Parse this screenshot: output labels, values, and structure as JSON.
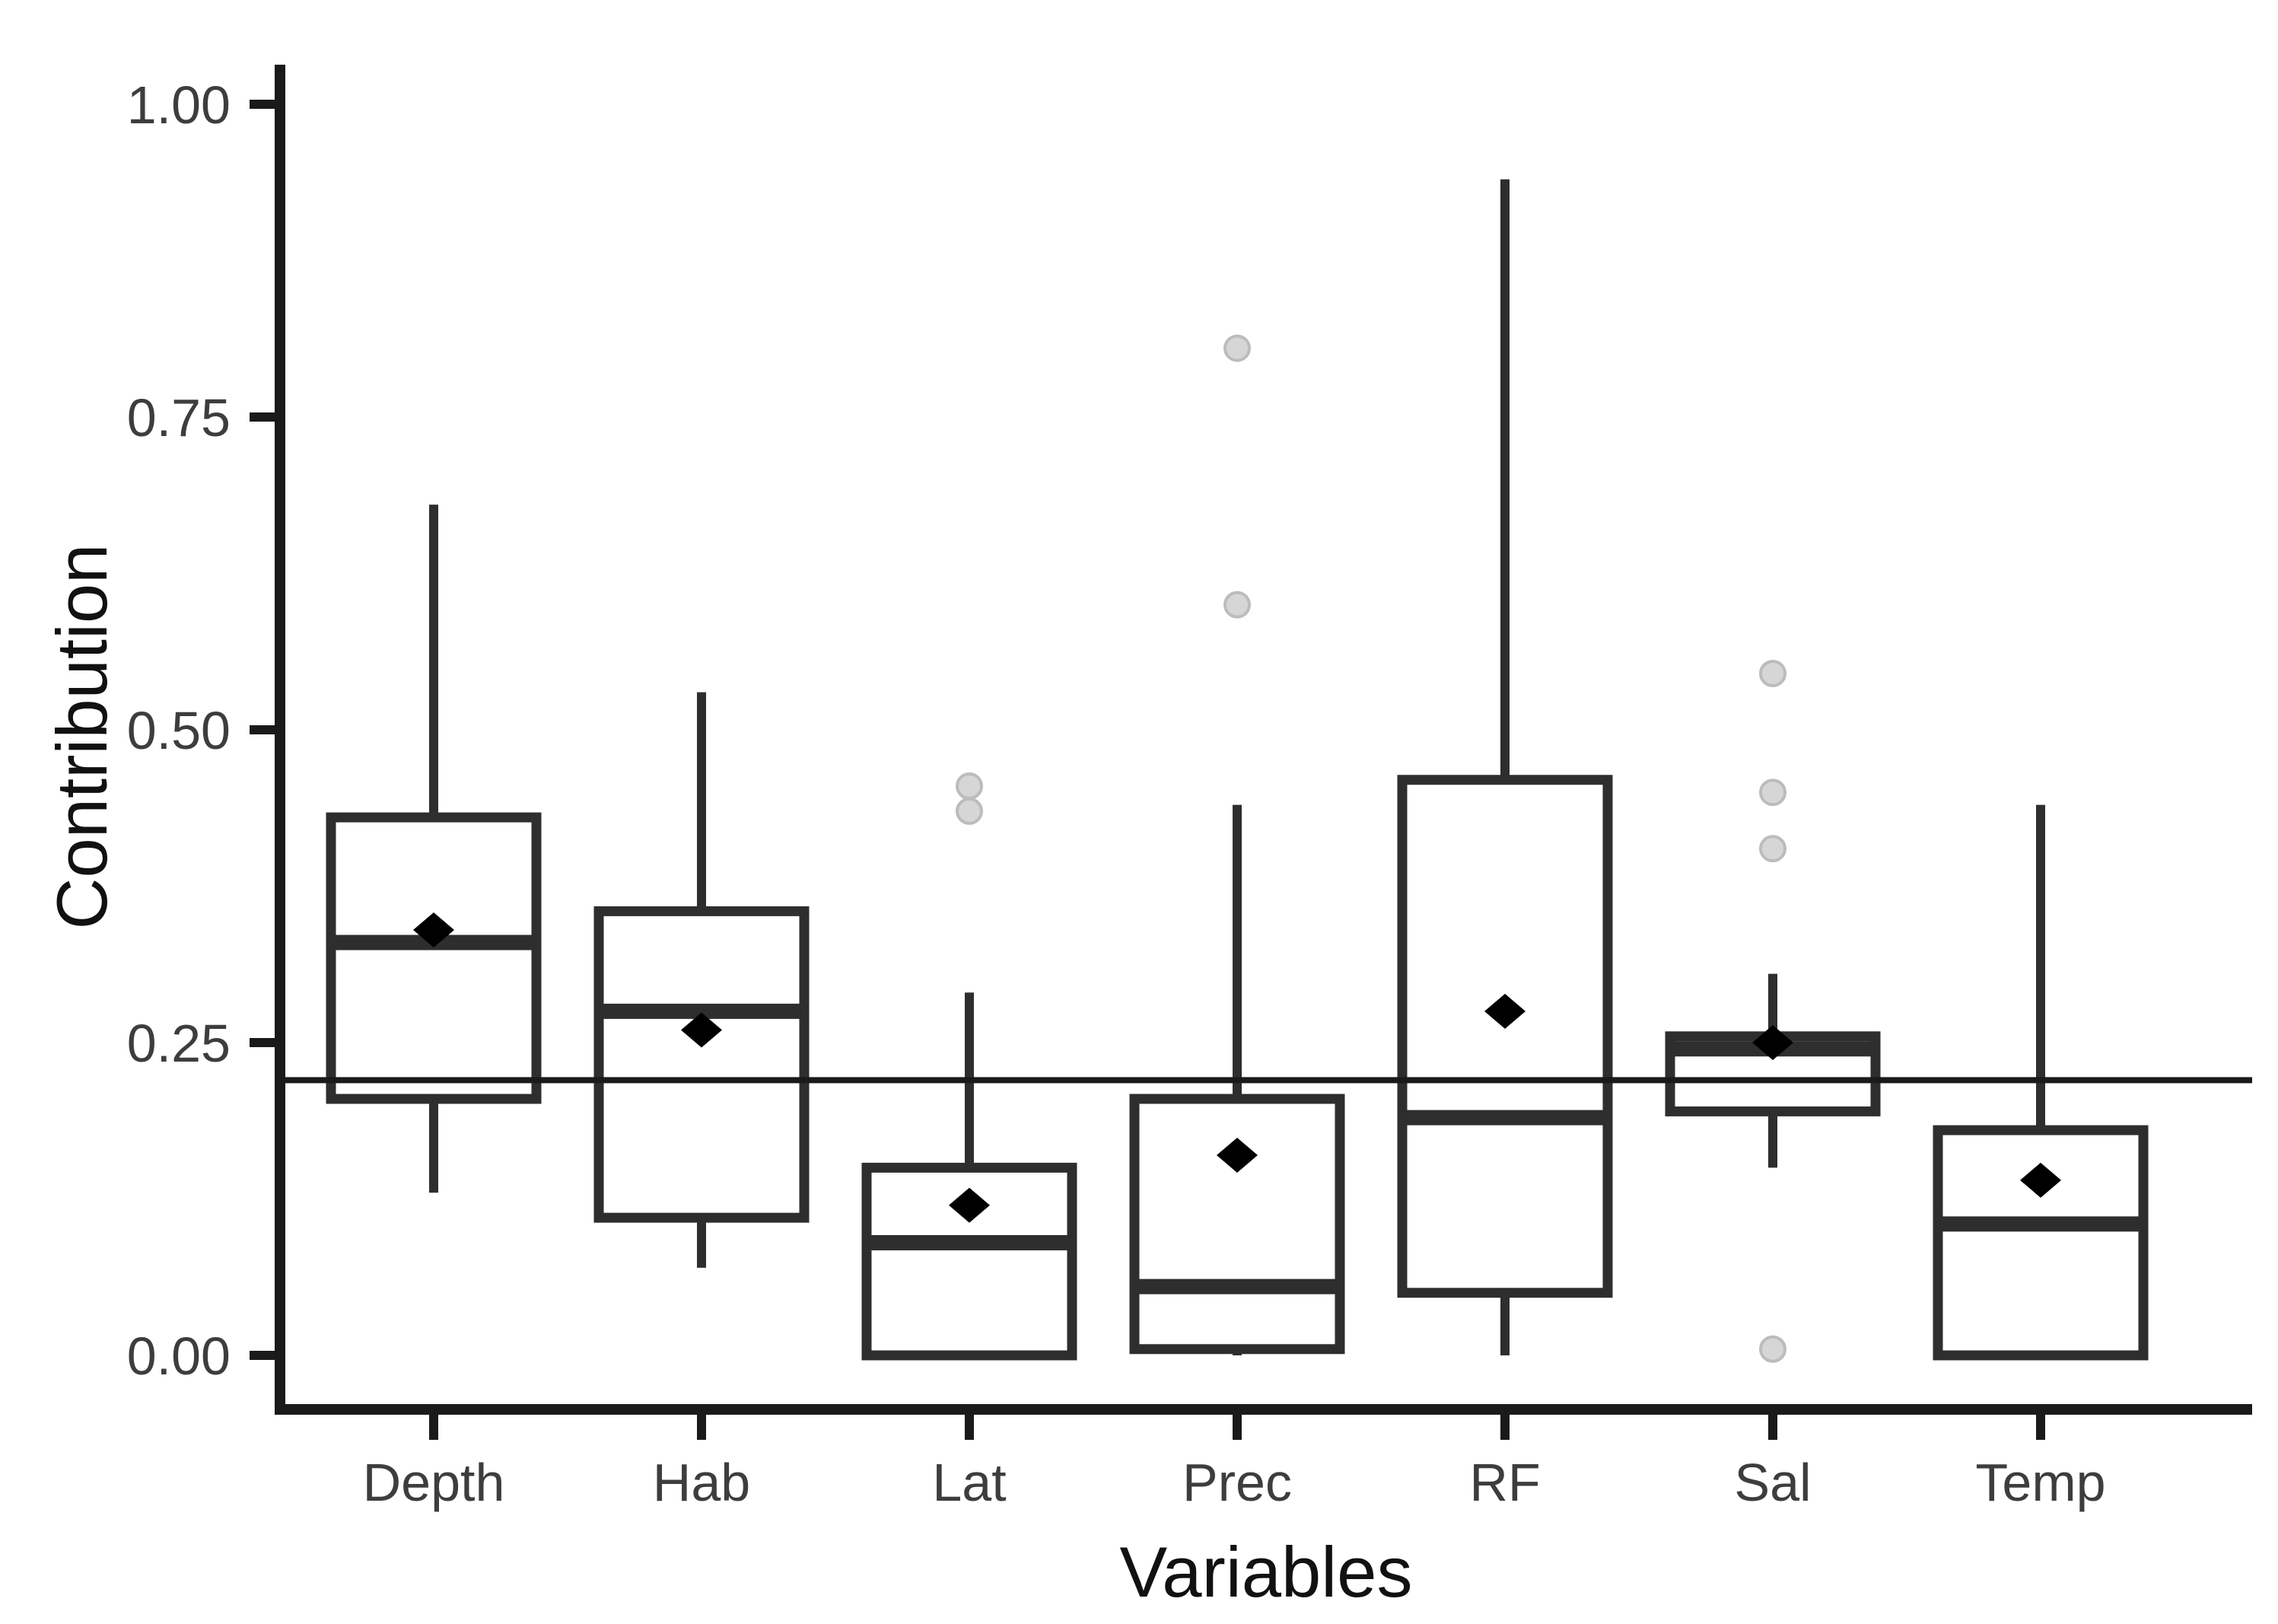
{
  "figure": {
    "kind": "boxplot-figure",
    "background": "#ffffff"
  },
  "chart_data": {
    "type": "boxplot",
    "title": "",
    "xlabel": "Variables",
    "ylabel": "Contribution",
    "categories": [
      "Depth",
      "Hab",
      "Lat",
      "Prec",
      "RF",
      "Sal",
      "Temp"
    ],
    "y_ticks": [
      {
        "value": 0.0,
        "label": "0.00"
      },
      {
        "value": 0.25,
        "label": "0.25"
      },
      {
        "value": 0.5,
        "label": "0.50"
      },
      {
        "value": 0.75,
        "label": "0.75"
      },
      {
        "value": 1.0,
        "label": "1.00"
      }
    ],
    "ylim": [
      -0.045,
      1.035
    ],
    "grid": false,
    "legend": "none",
    "reference_line": {
      "value": 0.22,
      "orientation": "horizontal"
    },
    "series": [
      {
        "name": "Depth",
        "whisker_low": 0.13,
        "q1": 0.205,
        "median": 0.33,
        "q3": 0.43,
        "whisker_high": 0.68,
        "mean": 0.34,
        "outliers": []
      },
      {
        "name": "Hab",
        "whisker_low": 0.07,
        "q1": 0.11,
        "median": 0.275,
        "q3": 0.355,
        "whisker_high": 0.53,
        "mean": 0.26,
        "outliers": []
      },
      {
        "name": "Lat",
        "whisker_low": 0.0,
        "q1": 0.0,
        "median": 0.09,
        "q3": 0.15,
        "whisker_high": 0.29,
        "mean": 0.12,
        "outliers": [
          0.455,
          0.435
        ]
      },
      {
        "name": "Prec",
        "whisker_low": 0.0,
        "q1": 0.005,
        "median": 0.055,
        "q3": 0.205,
        "whisker_high": 0.44,
        "mean": 0.16,
        "outliers": [
          0.805,
          0.6
        ]
      },
      {
        "name": "RF",
        "whisker_low": 0.0,
        "q1": 0.05,
        "median": 0.19,
        "q3": 0.46,
        "whisker_high": 0.94,
        "mean": 0.275,
        "outliers": []
      },
      {
        "name": "Sal",
        "whisker_low": 0.15,
        "q1": 0.195,
        "median": 0.245,
        "q3": 0.255,
        "whisker_high": 0.305,
        "mean": 0.25,
        "outliers": [
          0.545,
          0.45,
          0.405,
          0.005
        ]
      },
      {
        "name": "Temp",
        "whisker_low": 0.0,
        "q1": 0.0,
        "median": 0.105,
        "q3": 0.18,
        "whisker_high": 0.44,
        "mean": 0.14,
        "outliers": []
      }
    ],
    "colors": {
      "box_stroke": "#2e2e2e",
      "box_fill": "#ffffff",
      "median": "#2e2e2e",
      "whisker": "#2e2e2e",
      "axis": "#1a1a1a",
      "reference_line": "#1a1a1a",
      "mean_marker": "#000000",
      "outlier_fill": "#d6d6d6",
      "outlier_stroke": "#bcbcbc",
      "tick_text": "#3d3d3d",
      "title_text": "#111111"
    },
    "marker_shapes": {
      "mean": "diamond",
      "outlier": "circle"
    }
  }
}
